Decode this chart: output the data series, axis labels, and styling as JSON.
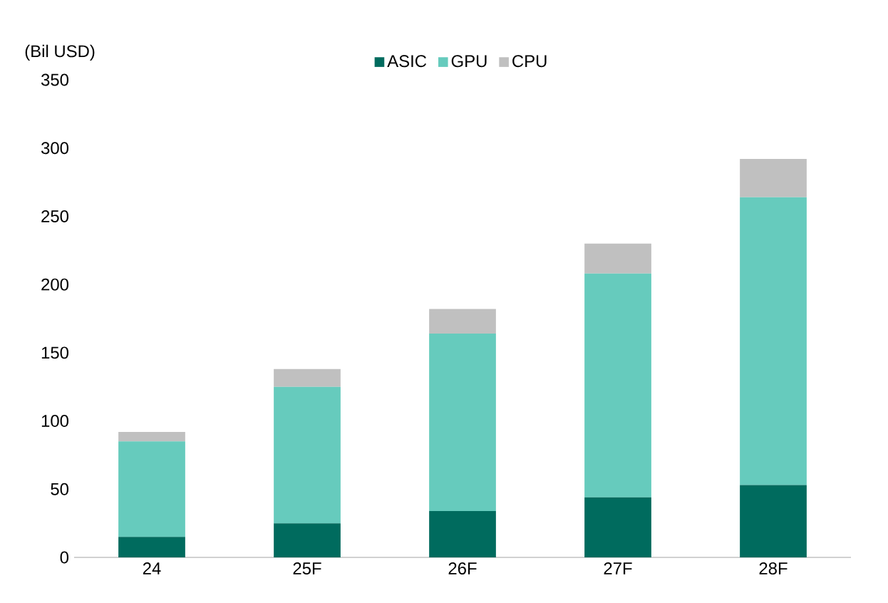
{
  "chart_data": {
    "type": "bar",
    "stacked": true,
    "ylabel": "(Bil USD)",
    "categories": [
      "24",
      "25F",
      "26F",
      "27F",
      "28F"
    ],
    "series": [
      {
        "name": "ASIC",
        "color": "#006b5e",
        "values": [
          15,
          25,
          34,
          44,
          53
        ]
      },
      {
        "name": "GPU",
        "color": "#66cbbd",
        "values": [
          70,
          100,
          130,
          164,
          211
        ]
      },
      {
        "name": "CPU",
        "color": "#c0c0c0",
        "values": [
          7,
          13,
          18,
          22,
          28
        ]
      }
    ],
    "ylim": [
      0,
      350
    ],
    "yticks": [
      0,
      50,
      100,
      150,
      200,
      250,
      300,
      350
    ],
    "legend": "top",
    "grid": false
  }
}
